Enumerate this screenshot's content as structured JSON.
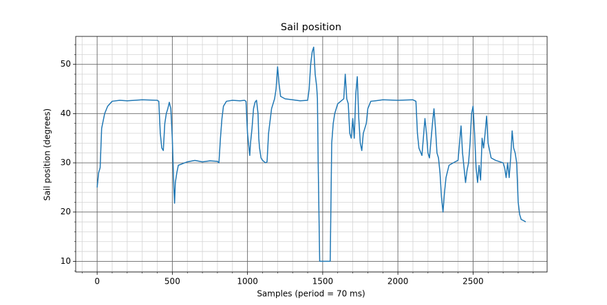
{
  "chart_data": {
    "type": "line",
    "title": "Sail position",
    "x_label": "Samples (period = 70 ms)",
    "y_label": "Sail position (degrees)",
    "xlim": [
      -142.5,
      2992.5
    ],
    "ylim": [
      7.825,
      55.675
    ],
    "xticks": [
      0,
      500,
      1000,
      1500,
      2000,
      2500
    ],
    "yticks": [
      10,
      20,
      30,
      40,
      50
    ],
    "xticks_minor": [
      -100,
      100,
      200,
      300,
      400,
      600,
      700,
      800,
      900,
      1100,
      1200,
      1300,
      1400,
      1600,
      1700,
      1800,
      1900,
      2100,
      2200,
      2300,
      2400,
      2600,
      2700,
      2800,
      2900
    ],
    "yticks_minor": [
      8,
      12,
      14,
      16,
      18,
      22,
      24,
      26,
      28,
      32,
      34,
      36,
      38,
      42,
      44,
      46,
      48,
      52,
      54
    ],
    "grid": true,
    "minor_grid": true,
    "series": [
      {
        "color": "#1f77b4",
        "x": [
          0,
          10,
          20,
          30,
          50,
          70,
          100,
          150,
          200,
          300,
          400,
          410,
          420,
          430,
          440,
          450,
          460,
          470,
          480,
          490,
          500,
          505,
          510,
          515,
          520,
          530,
          540,
          600,
          650,
          700,
          750,
          800,
          810,
          820,
          830,
          840,
          860,
          900,
          950,
          980,
          990,
          1000,
          1010,
          1015,
          1020,
          1030,
          1040,
          1050,
          1060,
          1070,
          1075,
          1080,
          1090,
          1100,
          1120,
          1130,
          1140,
          1160,
          1180,
          1190,
          1200,
          1210,
          1220,
          1250,
          1300,
          1350,
          1400,
          1410,
          1420,
          1430,
          1440,
          1450,
          1460,
          1465,
          1470,
          1480,
          1550,
          1560,
          1570,
          1580,
          1600,
          1620,
          1640,
          1650,
          1660,
          1670,
          1680,
          1690,
          1700,
          1710,
          1720,
          1730,
          1740,
          1750,
          1760,
          1770,
          1790,
          1800,
          1820,
          1850,
          1900,
          2000,
          2100,
          2120,
          2130,
          2140,
          2160,
          2180,
          2190,
          2200,
          2210,
          2230,
          2240,
          2250,
          2260,
          2270,
          2280,
          2290,
          2300,
          2310,
          2320,
          2340,
          2380,
          2400,
          2410,
          2420,
          2430,
          2440,
          2450,
          2460,
          2470,
          2480,
          2490,
          2500,
          2510,
          2520,
          2530,
          2540,
          2550,
          2560,
          2570,
          2580,
          2590,
          2600,
          2620,
          2650,
          2700,
          2710,
          2720,
          2730,
          2740,
          2750,
          2760,
          2770,
          2780,
          2790,
          2800,
          2810,
          2820,
          2840,
          2850
        ],
        "values": [
          25,
          28,
          29,
          37,
          40,
          41.5,
          42.5,
          42.7,
          42.6,
          42.8,
          42.7,
          42.5,
          36,
          33,
          32.5,
          38,
          40,
          41,
          42.3,
          41,
          35,
          30,
          25,
          21.8,
          26,
          28,
          29.5,
          30.2,
          30.5,
          30.2,
          30.4,
          30.3,
          30,
          35,
          39,
          41.5,
          42.5,
          42.7,
          42.6,
          42.7,
          42.5,
          36,
          33,
          31.5,
          34,
          37,
          41,
          42.3,
          42.7,
          40,
          35,
          33,
          31,
          30.5,
          30,
          30.2,
          36,
          41,
          43,
          45,
          49.5,
          46,
          43.5,
          43,
          42.8,
          42.6,
          42.7,
          45,
          50,
          52.5,
          53.5,
          48,
          45.5,
          43,
          30,
          10,
          10,
          34,
          38,
          40,
          42,
          42.5,
          43,
          48,
          43,
          42,
          36,
          35,
          39,
          35,
          44,
          47.5,
          39,
          34,
          32.5,
          36,
          38,
          41,
          42.5,
          42.6,
          42.8,
          42.7,
          42.8,
          42.5,
          36,
          33,
          31.5,
          39,
          36,
          32,
          31,
          38,
          41,
          37,
          32,
          31,
          28,
          23,
          20,
          24,
          27,
          29.5,
          30.2,
          30.5,
          34,
          37.5,
          32,
          29,
          26,
          28.5,
          30,
          34,
          40,
          41.5,
          36,
          29,
          26,
          29.5,
          26.5,
          35,
          33,
          36,
          39.5,
          34,
          31,
          30.5,
          30,
          29,
          27,
          30,
          27,
          31,
          36.5,
          33,
          32,
          30,
          22,
          19.5,
          18.5,
          18.2,
          18
        ]
      }
    ]
  }
}
